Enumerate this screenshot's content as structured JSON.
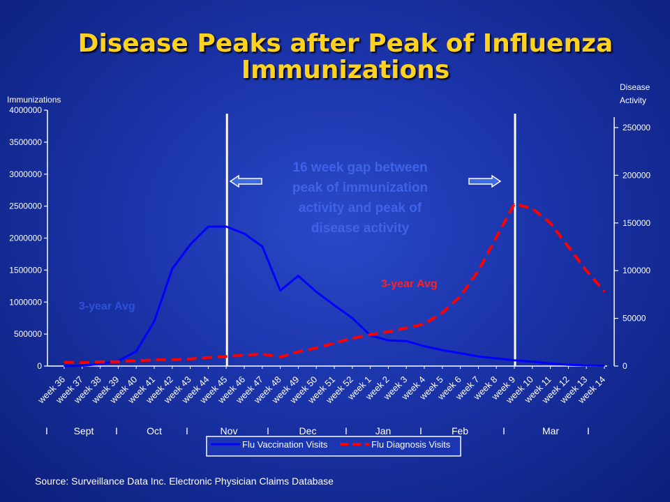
{
  "slide": {
    "title_line1": "Disease Peaks after Peak of Influenza",
    "title_line2": "Immunizations",
    "source": "Source: Surveillance Data Inc. Electronic Physician Claims Database"
  },
  "colors": {
    "title": "#ffd21f",
    "vaccination": "#0000ff",
    "diagnosis": "#ff0000",
    "annotation": "#3f63e6",
    "arrow_fill": "#3f6be0"
  },
  "chart_data": {
    "type": "line",
    "x": [
      "week 36",
      "week 37",
      "week 38",
      "week 39",
      "week 40",
      "week 41",
      "week 42",
      "week 43",
      "week 44",
      "week 45",
      "week 46",
      "week 47",
      "week 48",
      "week 49",
      "week 50",
      "week 51",
      "week 52",
      "week 1",
      "week 2",
      "week 3",
      "week 4",
      "week 5",
      "week 6",
      "week 7",
      "week 8",
      "week 9",
      "week 10",
      "week 11",
      "week 12",
      "week 13",
      "week 14"
    ],
    "ylabel": "Immunizations",
    "y2label_line1": "Disease",
    "y2label_line2": "Activity",
    "ylim": [
      0,
      4000000
    ],
    "y2lim": [
      0,
      250000
    ],
    "yticks": [
      "0",
      "500000",
      "1000000",
      "1500000",
      "2000000",
      "2500000",
      "3000000",
      "3500000",
      "4000000"
    ],
    "y2ticks": [
      "0",
      "50000",
      "100000",
      "150000",
      "200000",
      "250000"
    ],
    "months": [
      "I",
      "Sept",
      "I",
      "Oct",
      "I",
      "Nov",
      "I",
      "Dec",
      "I",
      "Jan",
      "I",
      "Feb",
      "I",
      "Mar",
      "I"
    ],
    "series": [
      {
        "name": "Flu Vaccination Visits",
        "axis": "left",
        "style": "solid",
        "values": [
          0,
          5000,
          30000,
          80000,
          230000,
          700000,
          1520000,
          1900000,
          2180000,
          2180000,
          2070000,
          1870000,
          1180000,
          1410000,
          1160000,
          950000,
          750000,
          480000,
          400000,
          390000,
          310000,
          250000,
          200000,
          150000,
          120000,
          90000,
          70000,
          40000,
          20000,
          10000,
          5000
        ]
      },
      {
        "name": "Flu Diagnosis Visits",
        "axis": "right",
        "style": "dashed",
        "values": [
          4000,
          3500,
          4500,
          4500,
          5500,
          6500,
          6500,
          7500,
          9000,
          10000,
          11500,
          12500,
          9500,
          15000,
          19000,
          24000,
          29000,
          33000,
          36000,
          40000,
          44000,
          56000,
          73000,
          100000,
          135000,
          170000,
          165000,
          150000,
          125000,
          100000,
          78000
        ]
      }
    ],
    "annotations": {
      "gap_text": [
        "16 week gap between",
        "peak of immunization",
        "activity and peak of",
        "disease activity"
      ],
      "vaccination_label": "3-year Avg",
      "diagnosis_label": "3-year Avg"
    },
    "markers": [
      "week 45",
      "week 9"
    ]
  }
}
